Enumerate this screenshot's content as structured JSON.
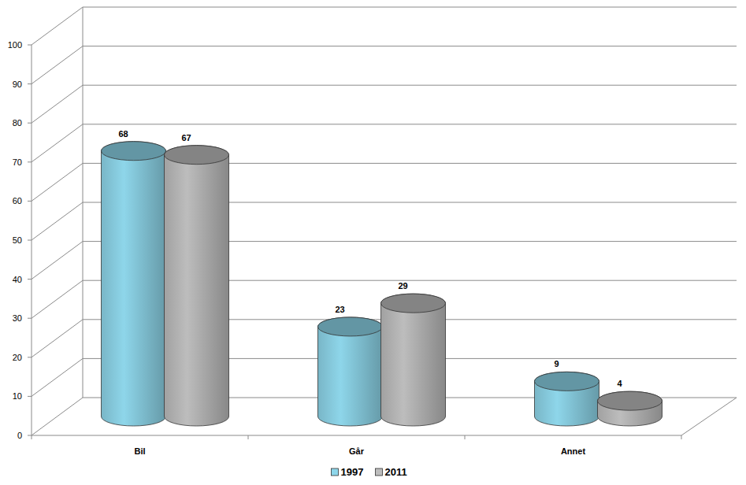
{
  "chart_data": {
    "type": "bar",
    "categories": [
      "Bil",
      "Går",
      "Annet"
    ],
    "series": [
      {
        "name": "1997",
        "color": "#8ed6ea",
        "values": [
          68,
          23,
          9
        ]
      },
      {
        "name": "2011",
        "color": "#bdbdbd",
        "values": [
          67,
          29,
          4
        ]
      }
    ],
    "ylim": [
      0,
      100
    ],
    "yticks": [
      0,
      10,
      20,
      30,
      40,
      50,
      60,
      70,
      80,
      90,
      100
    ],
    "grid": true,
    "data_labels": true,
    "legend": "bottom"
  }
}
